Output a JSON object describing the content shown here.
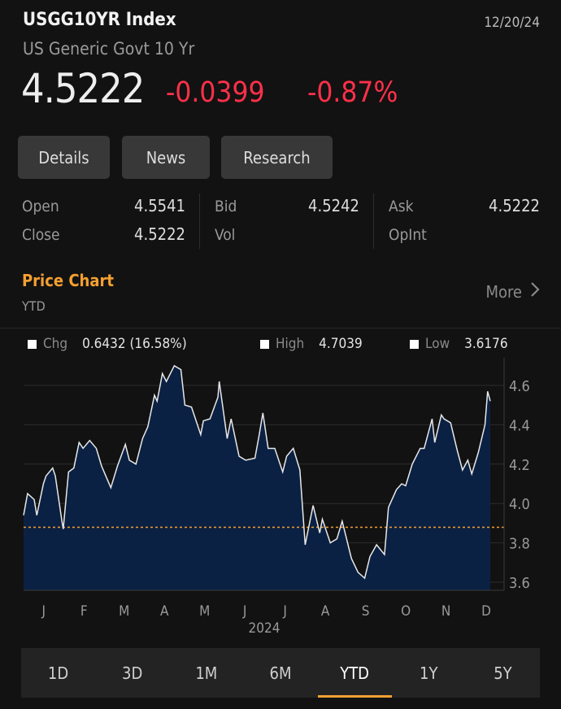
{
  "header": {
    "ticker": "USGG10YR Index",
    "date": "12/20/24",
    "name": "US Generic Govt 10 Yr",
    "price": "4.5222",
    "change": "-0.0399",
    "change_pct": "-0.87%"
  },
  "buttons": [
    "Details",
    "News",
    "Research"
  ],
  "stats": {
    "open_label": "Open",
    "open": "4.5541",
    "close_label": "Close",
    "close": "4.5222",
    "bid_label": "Bid",
    "bid": "4.5242",
    "vol_label": "Vol",
    "ask_label": "Ask",
    "ask": "4.5222",
    "opint_label": "OpInt"
  },
  "section": {
    "title": "Price Chart",
    "subtitle": "YTD",
    "more": "More"
  },
  "colors": {
    "accent": "#f5a030",
    "negative": "#ff3049",
    "area": "#0b2143",
    "line": "#e8e8e8"
  },
  "tabs": [
    "1D",
    "3D",
    "1M",
    "6M",
    "YTD",
    "1Y",
    "5Y"
  ],
  "selected_tab": "YTD",
  "chart_data": {
    "type": "area",
    "legend": [
      {
        "name": "Chg",
        "value": "0.6432 (16.58%)"
      },
      {
        "name": "High",
        "value": "4.7039"
      },
      {
        "name": "Low",
        "value": "3.6176"
      }
    ],
    "legend_placement": "top",
    "xlabel": "2024",
    "x_ticks": [
      "J",
      "F",
      "M",
      "A",
      "M",
      "J",
      "J",
      "A",
      "S",
      "O",
      "N",
      "D"
    ],
    "y_ticks": [
      "3.6",
      "3.8",
      "4.0",
      "4.2",
      "4.4",
      "4.6"
    ],
    "ylim": [
      3.56,
      4.74
    ],
    "y_axis": "right",
    "grid": "horizontal",
    "reference_line": 3.879,
    "x": [
      "2024-01-02",
      "2024-01-05",
      "2024-01-10",
      "2024-01-12",
      "2024-01-17",
      "2024-01-19",
      "2024-01-24",
      "2024-01-26",
      "2024-01-31",
      "2024-02-01",
      "2024-02-05",
      "2024-02-09",
      "2024-02-13",
      "2024-02-16",
      "2024-02-21",
      "2024-02-26",
      "2024-03-01",
      "2024-03-08",
      "2024-03-13",
      "2024-03-19",
      "2024-03-22",
      "2024-03-27",
      "2024-04-01",
      "2024-04-05",
      "2024-04-10",
      "2024-04-12",
      "2024-04-16",
      "2024-04-19",
      "2024-04-25",
      "2024-04-30",
      "2024-05-03",
      "2024-05-08",
      "2024-05-15",
      "2024-05-17",
      "2024-05-22",
      "2024-05-28",
      "2024-05-29",
      "2024-06-04",
      "2024-06-07",
      "2024-06-13",
      "2024-06-18",
      "2024-06-25",
      "2024-06-28",
      "2024-07-01",
      "2024-07-05",
      "2024-07-10",
      "2024-07-16",
      "2024-07-19",
      "2024-07-24",
      "2024-07-29",
      "2024-08-02",
      "2024-08-08",
      "2024-08-13",
      "2024-08-15",
      "2024-08-21",
      "2024-08-26",
      "2024-08-30",
      "2024-09-06",
      "2024-09-11",
      "2024-09-16",
      "2024-09-20",
      "2024-09-25",
      "2024-10-01",
      "2024-10-04",
      "2024-10-10",
      "2024-10-14",
      "2024-10-17",
      "2024-10-22",
      "2024-10-28",
      "2024-10-31",
      "2024-11-06",
      "2024-11-08",
      "2024-11-13",
      "2024-11-15",
      "2024-11-20",
      "2024-11-25",
      "2024-11-29",
      "2024-12-03",
      "2024-12-06",
      "2024-12-11",
      "2024-12-16",
      "2024-12-18",
      "2024-12-20"
    ],
    "values": [
      3.94,
      4.05,
      4.02,
      3.94,
      4.1,
      4.14,
      4.18,
      4.14,
      3.91,
      3.87,
      4.16,
      4.18,
      4.31,
      4.28,
      4.32,
      4.28,
      4.19,
      4.08,
      4.19,
      4.3,
      4.22,
      4.2,
      4.33,
      4.39,
      4.55,
      4.52,
      4.66,
      4.62,
      4.7,
      4.68,
      4.5,
      4.49,
      4.35,
      4.42,
      4.43,
      4.54,
      4.62,
      4.33,
      4.43,
      4.24,
      4.22,
      4.23,
      4.34,
      4.46,
      4.28,
      4.28,
      4.16,
      4.24,
      4.28,
      4.17,
      3.79,
      3.99,
      3.85,
      3.92,
      3.8,
      3.82,
      3.91,
      3.72,
      3.65,
      3.62,
      3.73,
      3.79,
      3.74,
      3.98,
      4.07,
      4.1,
      4.09,
      4.2,
      4.28,
      4.28,
      4.43,
      4.31,
      4.45,
      4.43,
      4.41,
      4.27,
      4.17,
      4.22,
      4.15,
      4.26,
      4.4,
      4.57,
      4.52
    ]
  }
}
